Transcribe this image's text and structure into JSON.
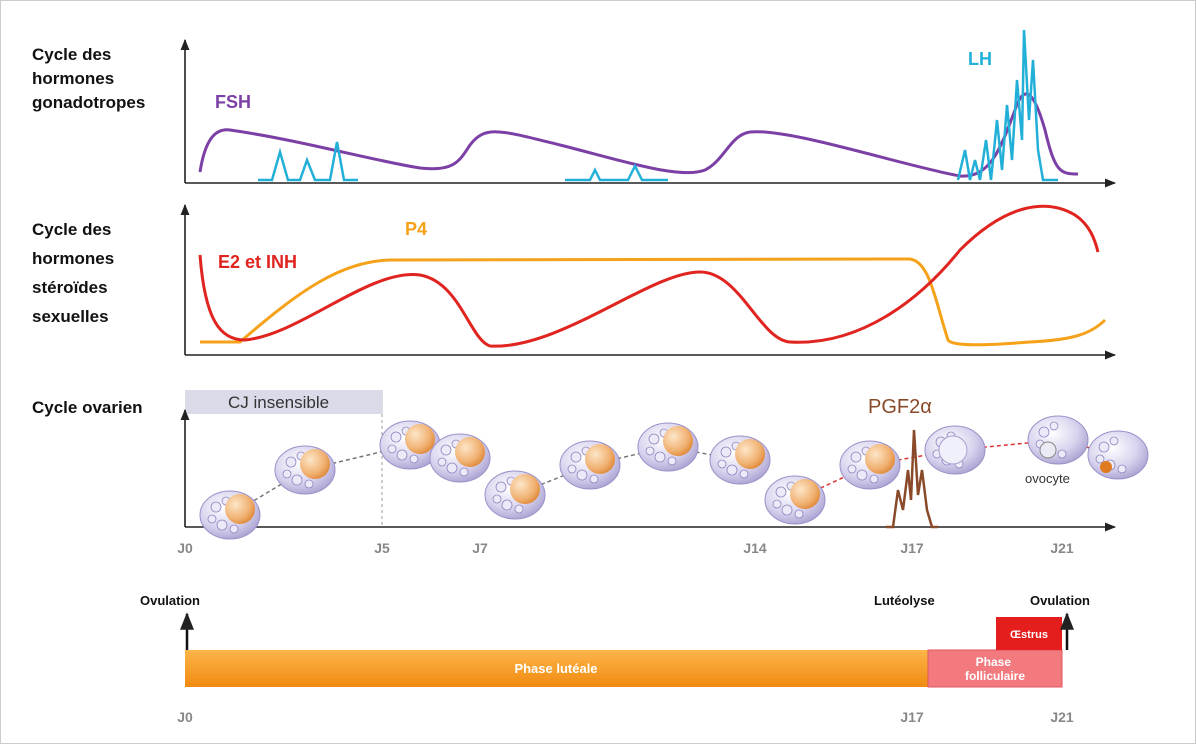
{
  "panels": {
    "gonadotropes": {
      "label": [
        "Cycle des",
        "hormones",
        "gonadotropes"
      ],
      "fsh": "FSH",
      "lh": "LH"
    },
    "steroides": {
      "label": [
        "Cycle des",
        "hormones",
        "stéroïdes",
        "sexuelles"
      ],
      "e2": "E2 et INH",
      "p4": "P4"
    },
    "ovarien": {
      "label": "Cycle ovarien",
      "cj": "CJ insensible",
      "pgf": "PGF2α",
      "ovocyte": "ovocyte"
    }
  },
  "days": [
    "J0",
    "J5",
    "J7",
    "J14",
    "J17",
    "J21"
  ],
  "timeline": {
    "ovulation_start": "Ovulation",
    "luteolyse": "Lutéolyse",
    "ovulation_end": "Ovulation",
    "oestrus": "Œstrus",
    "phase_luteale": "Phase lutéale",
    "phase_folliculaire": [
      "Phase",
      "folliculaire"
    ],
    "days": [
      "J0",
      "J17",
      "J21"
    ]
  }
}
